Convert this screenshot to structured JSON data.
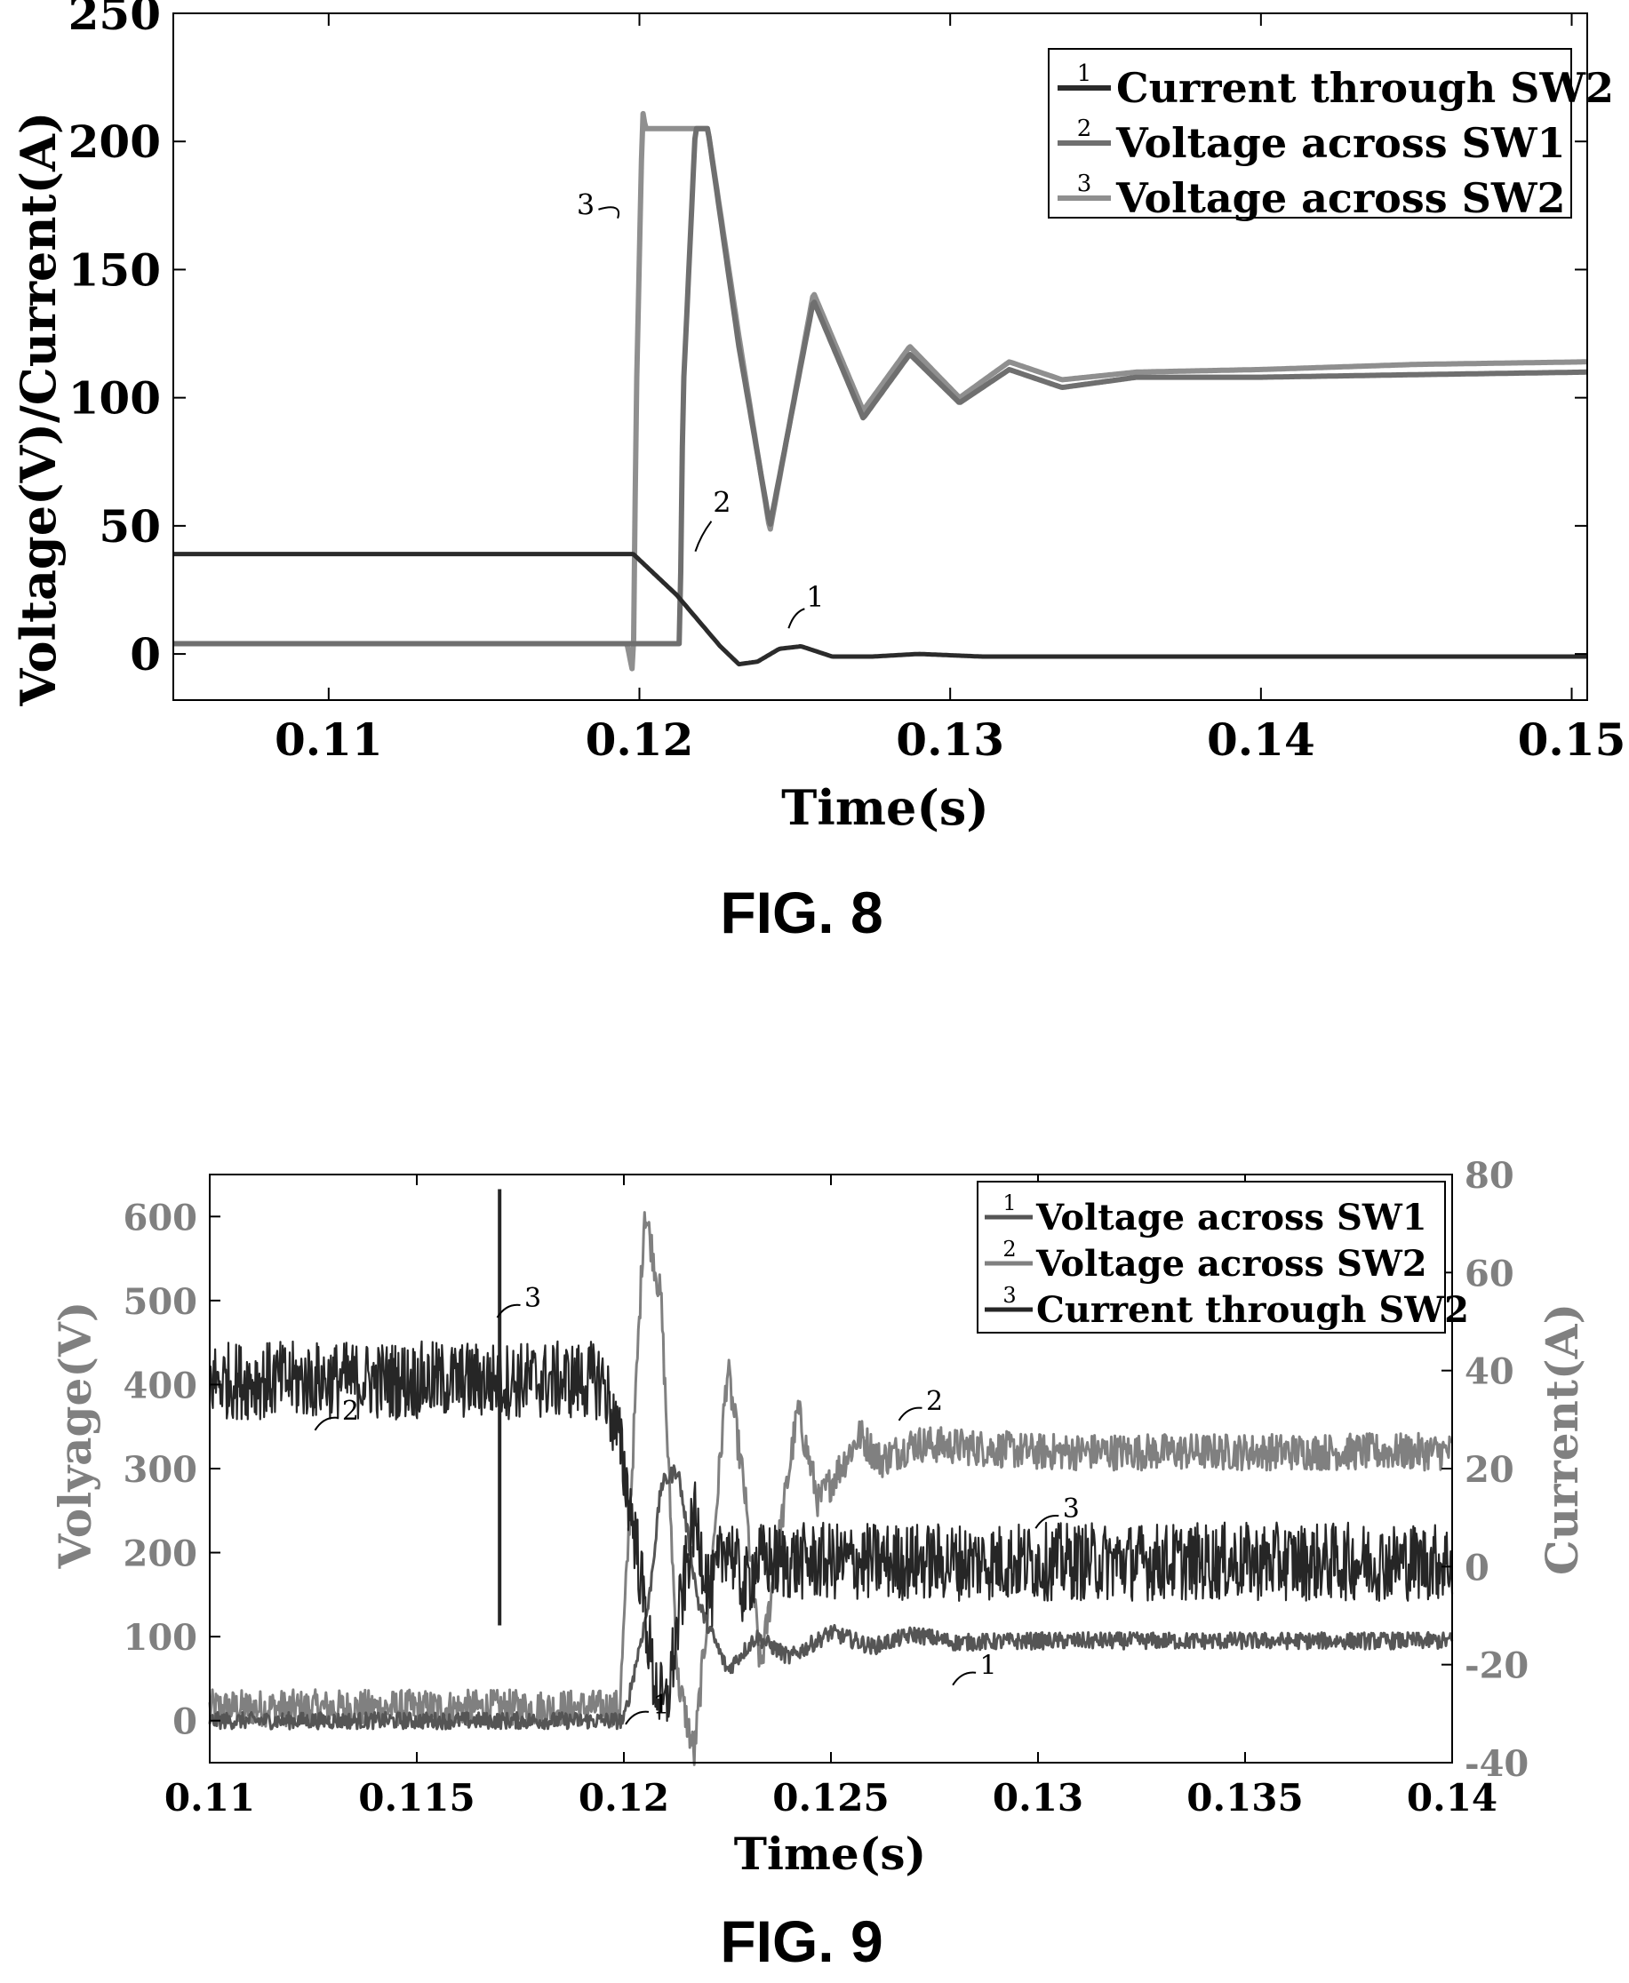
{
  "figures": [
    {
      "caption": "FIG. 8"
    },
    {
      "caption": "FIG. 9"
    }
  ],
  "chart_data": [
    {
      "type": "line",
      "title": "",
      "xlabel": "Time(s)",
      "ylabel": "Voltage(V)/Current(A)",
      "xlim": [
        0.105,
        0.1505
      ],
      "ylim": [
        -18,
        250
      ],
      "xticks": [
        0.11,
        0.12,
        0.13,
        0.14,
        0.15
      ],
      "xtick_labels": [
        "0.11",
        "0.12",
        "0.13",
        "0.14",
        "0.15"
      ],
      "yticks": [
        0,
        50,
        100,
        150,
        200,
        250
      ],
      "ytick_labels": [
        "0",
        "50",
        "100",
        "150",
        "200",
        "250"
      ],
      "legend_position": "top-right",
      "colors": {
        "series1": "#2b2b2b",
        "series2": "#6f6f6f",
        "series3": "#8f8f8f",
        "axis": "#000000"
      },
      "series": [
        {
          "name": "Current through SW2",
          "label": "1",
          "x": [
            0.105,
            0.1198,
            0.1205,
            0.1212,
            0.1219,
            0.1226,
            0.1232,
            0.1238,
            0.1245,
            0.1252,
            0.1262,
            0.1275,
            0.129,
            0.131,
            0.135,
            0.14,
            0.1505
          ],
          "y": [
            39,
            39,
            31,
            23,
            13,
            3,
            -4,
            -3,
            2,
            3,
            -1,
            -1,
            0,
            -1,
            -1,
            -1,
            -1
          ]
        },
        {
          "name": "Voltage across SW1",
          "label": "2",
          "x": [
            0.105,
            0.1213,
            0.1214,
            0.1218,
            0.122,
            0.1222,
            0.1232,
            0.1242,
            0.1256,
            0.1272,
            0.1287,
            0.1303,
            0.1319,
            0.1336,
            0.136,
            0.14,
            0.145,
            0.1505
          ],
          "y": [
            4,
            4,
            100,
            205,
            205,
            205,
            120,
            50,
            138,
            92,
            117,
            98,
            111,
            104,
            108,
            108,
            109,
            110
          ],
          "annotation": {
            "x": 0.1218,
            "y": 40,
            "text": "2"
          }
        },
        {
          "name": "Voltage across SW2",
          "label": "3",
          "x": [
            0.105,
            0.1196,
            0.1198,
            0.1199,
            0.1201,
            0.1202,
            0.121,
            0.1222,
            0.1232,
            0.1242,
            0.1256,
            0.1272,
            0.1287,
            0.1303,
            0.1319,
            0.1336,
            0.136,
            0.14,
            0.145,
            0.1505
          ],
          "y": [
            4,
            4,
            -8,
            100,
            212,
            205,
            205,
            205,
            124,
            48,
            141,
            95,
            120,
            100,
            114,
            107,
            110,
            111,
            113,
            114
          ],
          "annotation": {
            "x": 0.1193,
            "y": 170,
            "text": "3"
          }
        }
      ],
      "current_label_annotation": {
        "x": 0.1248,
        "y": 10,
        "text": "1"
      }
    },
    {
      "type": "line",
      "title": "",
      "xlabel": "Time(s)",
      "ylabel": "Volyage(V)",
      "y2label": "Current(A)",
      "xlim": [
        0.11,
        0.14
      ],
      "ylim": [
        -50,
        650
      ],
      "y2lim": [
        -40,
        80
      ],
      "xticks": [
        0.11,
        0.115,
        0.12,
        0.125,
        0.13,
        0.135,
        0.14
      ],
      "xtick_labels": [
        "0.11",
        "0.115",
        "0.12",
        "0.125",
        "0.13",
        "0.135",
        "0.14"
      ],
      "yticks": [
        0,
        100,
        200,
        300,
        400,
        500,
        600
      ],
      "ytick_labels": [
        "0",
        "100",
        "200",
        "300",
        "400",
        "500",
        "600"
      ],
      "y2ticks": [
        -40,
        -20,
        0,
        20,
        40,
        60,
        80
      ],
      "y2tick_labels": [
        "-40",
        "-20",
        "0",
        "20",
        "40",
        "60",
        "80"
      ],
      "legend_position": "top-right",
      "colors": {
        "series1": "#555555",
        "series2": "#808080",
        "series3": "#262626",
        "axis": "#000000"
      },
      "series": [
        {
          "name": "Voltage across SW1",
          "label": "1",
          "axis": "left",
          "x": [
            0.11,
            0.12,
            0.1203,
            0.1206,
            0.1209,
            0.1213,
            0.1218,
            0.1225,
            0.1232,
            0.124,
            0.125,
            0.126,
            0.127,
            0.128,
            0.13,
            0.135,
            0.14
          ],
          "y": [
            0,
            0,
            70,
            140,
            280,
            300,
            140,
            60,
            100,
            75,
            105,
            88,
            103,
            93,
            95,
            95,
            95
          ],
          "noise": 10,
          "annotation": {
            "x": 0.1255,
            "y": 70,
            "text": "1"
          }
        },
        {
          "name": "Voltage across SW2",
          "label": "2",
          "axis": "left",
          "x": [
            0.11,
            0.1199,
            0.1202,
            0.1205,
            0.1209,
            0.1213,
            0.1217,
            0.1221,
            0.1225,
            0.1229,
            0.1233,
            0.1237,
            0.1242,
            0.1247,
            0.1252,
            0.1257,
            0.1262,
            0.127,
            0.13,
            0.135,
            0.14
          ],
          "y": [
            15,
            15,
            300,
            610,
            500,
            50,
            -40,
            170,
            420,
            280,
            60,
            200,
            370,
            260,
            300,
            340,
            310,
            330,
            320,
            320,
            320
          ],
          "noise": 22,
          "annotation": {
            "x": 0.1265,
            "y": 360,
            "text": "2"
          }
        },
        {
          "name": "Current through SW2",
          "label": "3",
          "axis": "right",
          "x": [
            0.11,
            0.1195,
            0.1199,
            0.1203,
            0.1207,
            0.121,
            0.1213,
            0.1217,
            0.1221,
            0.1225,
            0.1229,
            0.1232,
            0.13,
            0.14
          ],
          "y": [
            38,
            38,
            25,
            5,
            -22,
            -30,
            -12,
            10,
            -6,
            6,
            -5,
            1,
            1,
            1
          ],
          "noise": 8,
          "annotation": {
            "x": 0.1172,
            "y": 50,
            "text": "3"
          }
        }
      ],
      "annotations": [
        {
          "text": "2",
          "x": 0.1131,
          "y": 30
        },
        {
          "text": "1",
          "x": 0.1206,
          "y": -30
        },
        {
          "text": "3",
          "x": 0.1305,
          "y": 10
        },
        {
          "text": "1",
          "x": 0.1285,
          "y": -22
        },
        {
          "text": "2",
          "x": 0.1272,
          "y": 32
        },
        {
          "text": "3",
          "x": 0.1175,
          "y": 53
        }
      ]
    }
  ]
}
